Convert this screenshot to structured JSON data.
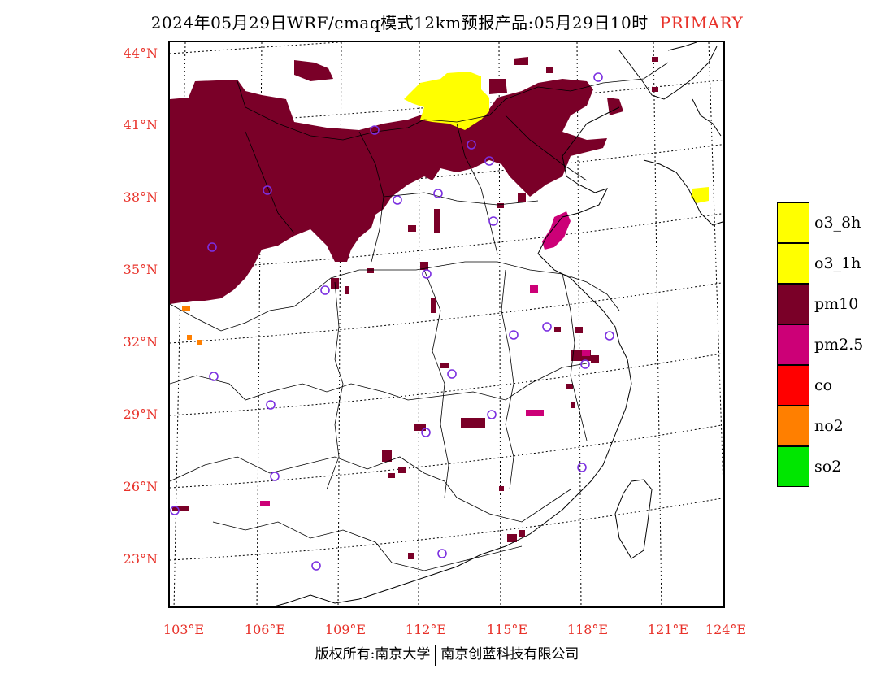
{
  "title": {
    "main": "2024年05月29日WRF/cmaq模式12km预报产品:05月29日10时",
    "tag": "PRIMARY"
  },
  "map": {
    "lat_labels": [
      "44°N",
      "41°N",
      "38°N",
      "35°N",
      "32°N",
      "29°N",
      "26°N",
      "23°N"
    ],
    "lon_labels": [
      "103°E",
      "106°E",
      "109°E",
      "112°E",
      "115°E",
      "118°E",
      "121°E",
      "124°E"
    ],
    "region_colors": {
      "pm10": "#7a0028",
      "pm2_5": "#cc0077",
      "o3": "#ffff00",
      "no2": "#ff7f00",
      "station_marker": "#7b2fe0"
    }
  },
  "legend": {
    "items": [
      {
        "label": "o3_8h",
        "color": "#ffff00"
      },
      {
        "label": "o3_1h",
        "color": "#ffff00"
      },
      {
        "label": "pm10",
        "color": "#7a0028"
      },
      {
        "label": "pm2.5",
        "color": "#cc0077"
      },
      {
        "label": "co",
        "color": "#ff0000"
      },
      {
        "label": "no2",
        "color": "#ff7f00"
      },
      {
        "label": "so2",
        "color": "#00e600"
      }
    ]
  },
  "footer": {
    "left": "版权所有:南京大学",
    "right": "南京创蓝科技有限公司"
  }
}
